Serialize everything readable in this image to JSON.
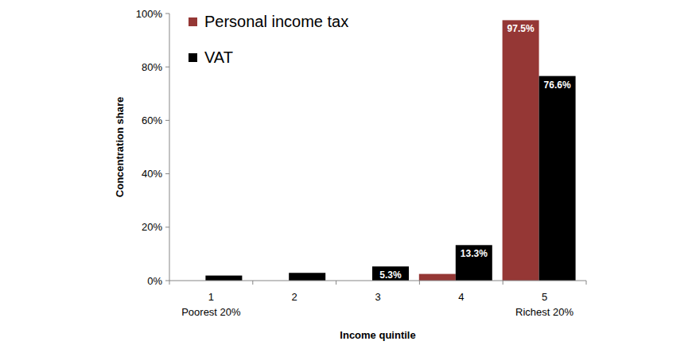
{
  "chart_data": {
    "type": "bar",
    "x_label": "Income quintile",
    "y_label": "Concentration share",
    "categories": [
      "1",
      "2",
      "3",
      "4",
      "5"
    ],
    "category_notes": [
      "Poorest 20%",
      null,
      null,
      null,
      "Richest 20%"
    ],
    "series": [
      {
        "name": "Personal income tax",
        "color": "#953735",
        "values": [
          0,
          0,
          0,
          2.5,
          97.5
        ],
        "value_labels": [
          null,
          null,
          null,
          null,
          "97.5%"
        ]
      },
      {
        "name": "VAT",
        "color": "#000000",
        "values": [
          1.9,
          2.9,
          5.3,
          13.3,
          76.6
        ],
        "value_labels": [
          null,
          null,
          "5.3%",
          "13.3%",
          "76.6%"
        ]
      }
    ],
    "ylim": [
      0,
      100
    ],
    "yticks": [
      {
        "value": 0,
        "label": "0%"
      },
      {
        "value": 20,
        "label": "20%"
      },
      {
        "value": 40,
        "label": "40%"
      },
      {
        "value": 60,
        "label": "60%"
      },
      {
        "value": 80,
        "label": "80%"
      },
      {
        "value": 100,
        "label": "100%"
      }
    ],
    "grid": false,
    "legend": "upper left",
    "data_labels": true
  }
}
